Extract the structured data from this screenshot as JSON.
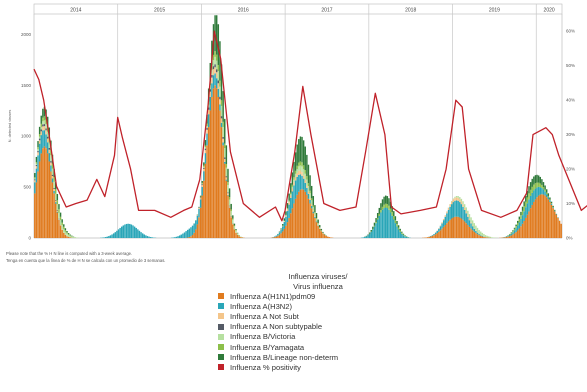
{
  "chart_data": {
    "type": "bar",
    "title": "",
    "ylabel": "N. detected viruses",
    "y2label": "",
    "ylim": [
      0,
      2200
    ],
    "y2lim": [
      0,
      65
    ],
    "yticks": [
      "0",
      "500",
      "1000",
      "1500",
      "2000"
    ],
    "y2ticks": [
      "0%",
      "10%",
      "20%",
      "30%",
      "40%",
      "50%",
      "60%"
    ],
    "years": [
      {
        "label": "2014",
        "weeks": 52
      },
      {
        "label": "2015",
        "weeks": 52
      },
      {
        "label": "2016",
        "weeks": 52
      },
      {
        "label": "2017",
        "weeks": 52
      },
      {
        "label": "2018",
        "weeks": 52
      },
      {
        "label": "2019",
        "weeks": 52
      },
      {
        "label": "2020",
        "weeks": 16
      }
    ],
    "series": [
      {
        "name": "Influenza A(H1N1)pdm09",
        "color": "#e07b1f",
        "peaks": [
          [
            6,
            900,
            5
          ],
          [
            112,
            1500,
            5
          ],
          [
            166,
            480,
            6
          ],
          [
            262,
            210,
            7
          ],
          [
            315,
            430,
            8
          ],
          [
            356,
            380,
            5
          ]
        ]
      },
      {
        "name": "Influenza A(H3N2)",
        "color": "#2aa6b8",
        "peaks": [
          [
            4,
            180,
            4
          ],
          [
            58,
            140,
            6
          ],
          [
            98,
            90,
            5
          ],
          [
            110,
            130,
            4
          ],
          [
            162,
            180,
            5
          ],
          [
            218,
            300,
            5
          ],
          [
            262,
            160,
            6
          ],
          [
            308,
            120,
            6
          ],
          [
            356,
            120,
            5
          ]
        ]
      },
      {
        "name": "Influenza A Not Subt",
        "color": "#f4c58a",
        "peaks": [
          [
            6,
            40,
            5
          ],
          [
            112,
            60,
            5
          ],
          [
            164,
            40,
            5
          ],
          [
            262,
            30,
            6
          ],
          [
            356,
            40,
            5
          ]
        ]
      },
      {
        "name": "Influenza A Non subtypable",
        "color": "#555b66",
        "peaks": [
          [
            6,
            20,
            5
          ],
          [
            112,
            30,
            5
          ],
          [
            356,
            20,
            5
          ]
        ]
      },
      {
        "name": "Influenza B/Victoria",
        "color": "#b6e0a0",
        "peaks": [
          [
            12,
            60,
            6
          ],
          [
            116,
            100,
            5
          ],
          [
            168,
            60,
            5
          ],
          [
            272,
            50,
            6
          ],
          [
            360,
            180,
            5
          ]
        ]
      },
      {
        "name": "Influenza B/Yamagata",
        "color": "#8cbf4a",
        "peaks": [
          [
            10,
            50,
            6
          ],
          [
            114,
            60,
            5
          ],
          [
            166,
            40,
            5
          ],
          [
            220,
            40,
            5
          ],
          [
            308,
            60,
            6
          ]
        ]
      },
      {
        "name": "Influenza B/Lineage non-determ",
        "color": "#2f7a3a",
        "peaks": [
          [
            8,
            100,
            6
          ],
          [
            114,
            400,
            4
          ],
          [
            166,
            250,
            5
          ],
          [
            218,
            80,
            5
          ],
          [
            310,
            80,
            6
          ],
          [
            358,
            90,
            5
          ]
        ]
      }
    ],
    "positivity": {
      "name": "Influenza % positivity",
      "color": "#c0222a",
      "weeks": [
        0,
        3,
        6,
        10,
        14,
        20,
        26,
        33,
        39,
        44,
        50,
        52,
        55,
        60,
        65,
        75,
        85,
        93,
        98,
        103,
        108,
        112,
        116,
        122,
        130,
        140,
        150,
        154,
        156,
        162,
        167,
        172,
        180,
        190,
        200,
        206,
        212,
        218,
        222,
        228,
        240,
        250,
        256,
        262,
        266,
        270,
        278,
        290,
        300,
        306,
        310,
        318,
        322,
        326,
        340,
        348,
        352,
        356,
        360,
        364
      ],
      "values": [
        49,
        46,
        40,
        28,
        15,
        9,
        10,
        11,
        17,
        12,
        24,
        35,
        29,
        20,
        8,
        8,
        6,
        8,
        9,
        17,
        38,
        60,
        52,
        25,
        10,
        6,
        9,
        5,
        8,
        25,
        44,
        30,
        10,
        8,
        9,
        25,
        42,
        30,
        9,
        7,
        8,
        9,
        20,
        40,
        38,
        20,
        8,
        6,
        8,
        13,
        30,
        32,
        30,
        24,
        8,
        11,
        25,
        38,
        35,
        6
      ]
    }
  },
  "notes": [
    "Please note that the % H N line is computed with a 3-week average.",
    "Tenga en cuenta que la línea de % de H N se calcula con un promedio de 3 semanas."
  ],
  "legend": {
    "title_line1": "Influenza viruses/",
    "title_line2": "Virus influenza"
  }
}
